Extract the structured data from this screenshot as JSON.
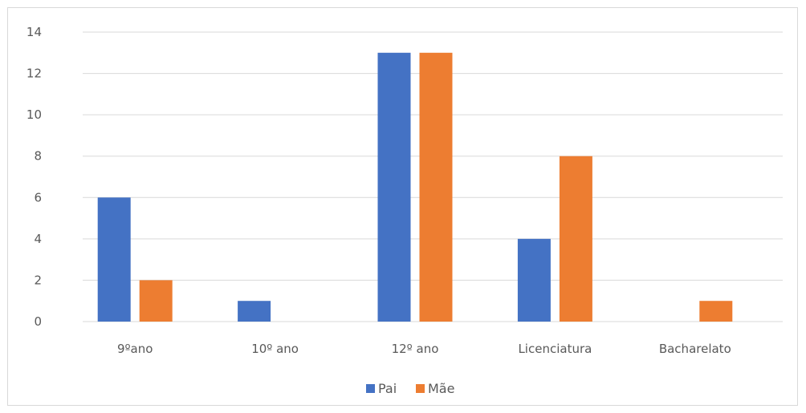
{
  "chart_data": {
    "type": "bar",
    "categories": [
      "9ºano",
      "10º ano",
      "12º ano",
      "Licenciatura",
      "Bacharelato"
    ],
    "series": [
      {
        "name": "Pai",
        "values": [
          6,
          1,
          13,
          4,
          0
        ],
        "color": "#4472C4"
      },
      {
        "name": "Mãe",
        "values": [
          2,
          0,
          13,
          8,
          1
        ],
        "color": "#ED7D31"
      }
    ],
    "title": "",
    "xlabel": "",
    "ylabel": "",
    "ylim": [
      0,
      14
    ],
    "yticks": [
      "0",
      "2",
      "4",
      "6",
      "8",
      "10",
      "12",
      "14"
    ],
    "grid": true,
    "legend_position": "bottom"
  }
}
